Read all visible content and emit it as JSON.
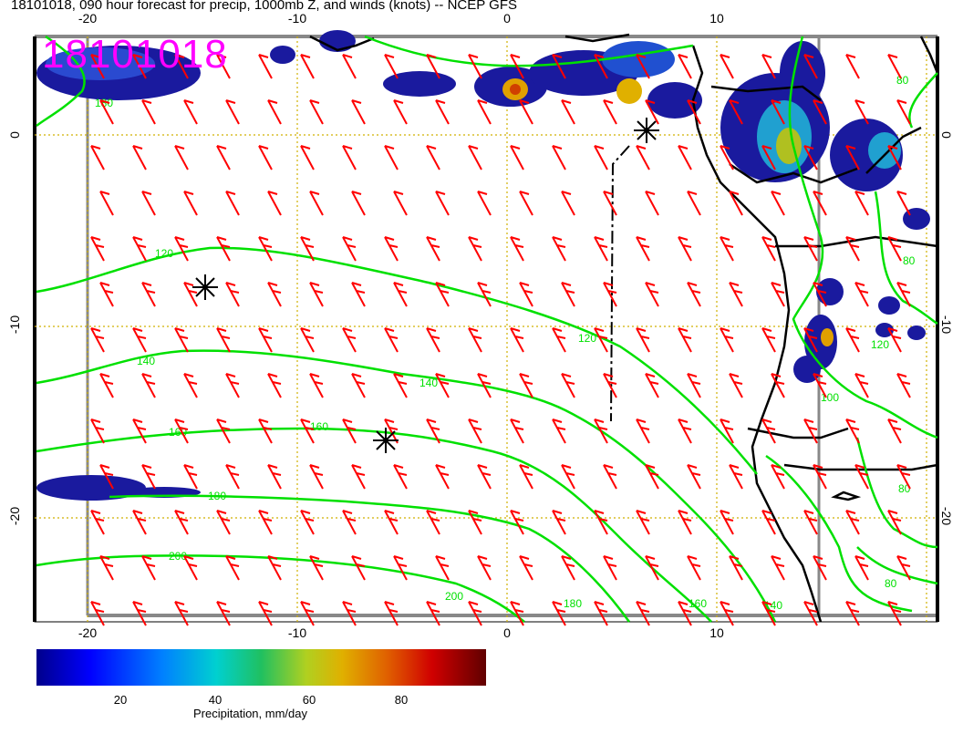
{
  "title": "18101018, 090 hour forecast for precip, 1000mb Z, and winds (knots) -- NCEP GFS",
  "stamp": "18101018",
  "axes": {
    "lon_top": [
      "-20",
      "-10",
      "0",
      "10"
    ],
    "lon_bottom": [
      "-20",
      "-10",
      "0",
      "10"
    ],
    "lat_left": [
      "0",
      "-10",
      "-20"
    ],
    "lat_right": [
      "0",
      "-10",
      "-20"
    ]
  },
  "contours": {
    "labels": [
      "120",
      "140",
      "160",
      "180",
      "200",
      "180",
      "160",
      "140",
      "120",
      "100",
      "80",
      "80",
      "80",
      "80",
      "180",
      "200",
      "120",
      "140",
      "160"
    ]
  },
  "colorbar": {
    "ticks": [
      "20",
      "40",
      "60",
      "80"
    ],
    "label": "Precipitation, mm/day"
  },
  "colors": {
    "wind_barbs": "#ff0000",
    "contours": "#00e000",
    "precip_low": "#0000cc",
    "precip_high": "#d00000",
    "stamp": "#ff00ff",
    "grid": "#d0b000"
  }
}
